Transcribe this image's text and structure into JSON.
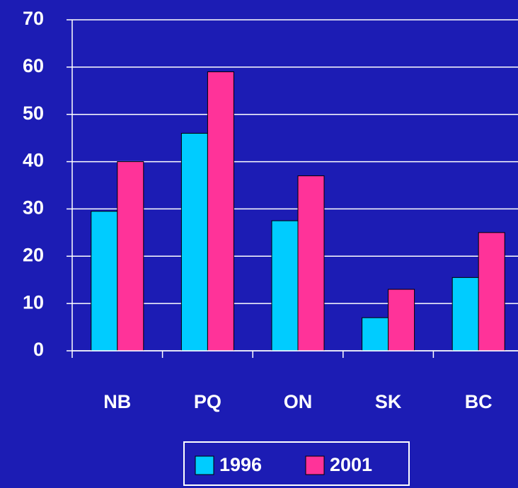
{
  "chart_data": {
    "type": "bar",
    "categories": [
      "NB",
      "PQ",
      "ON",
      "SK",
      "BC"
    ],
    "series": [
      {
        "name": "1996",
        "color": "#00ccff",
        "values": [
          29.5,
          46,
          27.5,
          7,
          15.5
        ]
      },
      {
        "name": "2001",
        "color": "#ff3399",
        "values": [
          40,
          59,
          37,
          13,
          25
        ]
      }
    ],
    "ylim": [
      0,
      70
    ],
    "yticks": [
      0,
      10,
      20,
      30,
      40,
      50,
      60,
      70
    ],
    "grid": true,
    "legend": "bottom"
  }
}
